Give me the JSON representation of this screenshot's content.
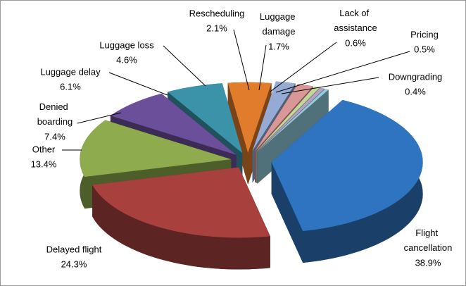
{
  "chart_data": {
    "type": "pie3d",
    "categories": [
      "Flight cancellation",
      "Delayed flight",
      "Other",
      "Denied boarding",
      "Luggage delay",
      "Luggage loss",
      "Rescheduling",
      "Luggage damage",
      "Lack of assistance",
      "Pricing",
      "Downgrading"
    ],
    "values": [
      38.9,
      24.3,
      13.4,
      7.4,
      6.1,
      4.6,
      2.1,
      1.7,
      0.6,
      0.5,
      0.4
    ],
    "value_labels": [
      "38.9%",
      "24.3%",
      "13.4%",
      "7.4%",
      "6.1%",
      "4.6%",
      "2.1%",
      "1.7%",
      "0.6%",
      "0.5%",
      "0.4%"
    ],
    "colors": [
      "#2f74c0",
      "#a8413e",
      "#8eab4e",
      "#6c4f9b",
      "#3b93a9",
      "#e07c2c",
      "#95abd5",
      "#d99896",
      "#c3d69b",
      "#b3a2c7",
      "#93cddd"
    ]
  }
}
